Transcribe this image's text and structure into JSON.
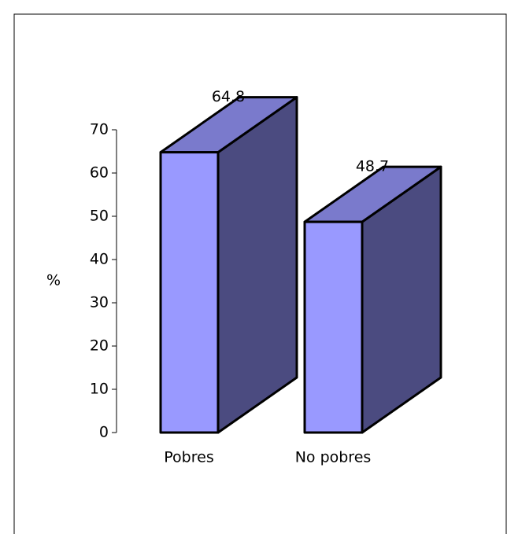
{
  "chart_data": {
    "type": "bar3d",
    "y_label": "%",
    "categories": [
      "Pobres",
      "No pobres"
    ],
    "values": [
      64.8,
      48.7
    ],
    "color": "#9999ff",
    "ylim": [
      0,
      70
    ],
    "yticks": [
      0,
      10,
      20,
      30,
      40,
      50,
      60,
      70
    ]
  }
}
